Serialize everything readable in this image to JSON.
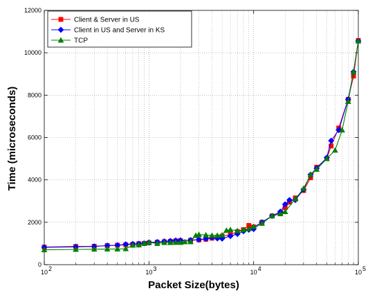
{
  "chart_data": {
    "type": "line",
    "title": "",
    "xlabel": "Packet Size(bytes)",
    "ylabel": "Time (microseconds)",
    "xscale": "log",
    "xlim": [
      100,
      100000
    ],
    "ylim": [
      0,
      12000
    ],
    "grid": true,
    "legend_position": "top-left",
    "x_ticks": [
      {
        "value": 100,
        "base": "10",
        "exp": "2"
      },
      {
        "value": 1000,
        "base": "10",
        "exp": "3"
      },
      {
        "value": 10000,
        "base": "10",
        "exp": "4"
      },
      {
        "value": 100000,
        "base": "10",
        "exp": "5"
      }
    ],
    "y_ticks": [
      {
        "value": 0,
        "label": "0"
      },
      {
        "value": 2000,
        "label": "2000"
      },
      {
        "value": 4000,
        "label": "4000"
      },
      {
        "value": 6000,
        "label": "6000"
      },
      {
        "value": 8000,
        "label": "8000"
      },
      {
        "value": 10000,
        "label": "10000"
      },
      {
        "value": 12000,
        "label": "12000"
      }
    ],
    "series": [
      {
        "name": "Client & Server in US",
        "color": "#ff0000",
        "marker": "square",
        "x": [
          100,
          200,
          300,
          400,
          500,
          600,
          700,
          800,
          900,
          1000,
          1200,
          1400,
          1600,
          1800,
          2000,
          2500,
          3000,
          3500,
          4000,
          4500,
          5000,
          6000,
          7000,
          8000,
          9000,
          10000,
          12000,
          15000,
          18000,
          20000,
          22000,
          25000,
          30000,
          35000,
          40000,
          50000,
          55000,
          65000,
          80000,
          90000,
          100000
        ],
        "y": [
          830,
          860,
          870,
          900,
          920,
          940,
          960,
          990,
          1000,
          1030,
          1060,
          1080,
          1100,
          1120,
          1130,
          1150,
          1170,
          1200,
          1250,
          1300,
          1340,
          1420,
          1560,
          1650,
          1850,
          1780,
          2000,
          2300,
          2440,
          2700,
          2950,
          3150,
          3500,
          4100,
          4600,
          5000,
          5600,
          6450,
          7800,
          8900,
          10580
        ]
      },
      {
        "name": "Client in US and Server in KS",
        "color": "#0000ff",
        "marker": "diamond",
        "x": [
          100,
          200,
          300,
          400,
          500,
          600,
          700,
          800,
          900,
          1000,
          1200,
          1400,
          1600,
          1800,
          2000,
          2500,
          3000,
          3500,
          4000,
          4500,
          5000,
          6000,
          7000,
          8000,
          9000,
          10000,
          12000,
          15000,
          18000,
          20000,
          22000,
          25000,
          30000,
          35000,
          40000,
          50000,
          55000,
          65000,
          80000,
          90000,
          100000
        ],
        "y": [
          820,
          840,
          860,
          900,
          920,
          960,
          980,
          990,
          1010,
          1050,
          1070,
          1100,
          1120,
          1140,
          1150,
          1160,
          1180,
          1220,
          1280,
          1240,
          1230,
          1350,
          1450,
          1580,
          1650,
          1680,
          2000,
          2300,
          2500,
          2850,
          3050,
          3050,
          3550,
          4250,
          4550,
          5050,
          5850,
          6350,
          7800,
          9100,
          10550
        ]
      },
      {
        "name": "TCP",
        "color": "#008000",
        "marker": "triangle",
        "x": [
          100,
          200,
          300,
          400,
          500,
          600,
          700,
          800,
          900,
          1000,
          1200,
          1400,
          1600,
          1800,
          2000,
          2200,
          2500,
          2800,
          3000,
          3500,
          4000,
          4500,
          5000,
          5500,
          6000,
          7000,
          8000,
          9000,
          10000,
          12000,
          15000,
          18000,
          20000,
          25000,
          30000,
          35000,
          40000,
          50000,
          60000,
          70000,
          80000,
          90000,
          100000
        ],
        "y": [
          700,
          720,
          730,
          740,
          740,
          750,
          920,
          930,
          1000,
          1050,
          1000,
          1040,
          1040,
          1050,
          1050,
          1080,
          1080,
          1380,
          1420,
          1400,
          1380,
          1380,
          1400,
          1620,
          1650,
          1600,
          1650,
          1700,
          1800,
          1950,
          2300,
          2400,
          2500,
          3100,
          3600,
          4250,
          4500,
          5000,
          5400,
          6350,
          7700,
          9100,
          10550
        ]
      }
    ]
  }
}
